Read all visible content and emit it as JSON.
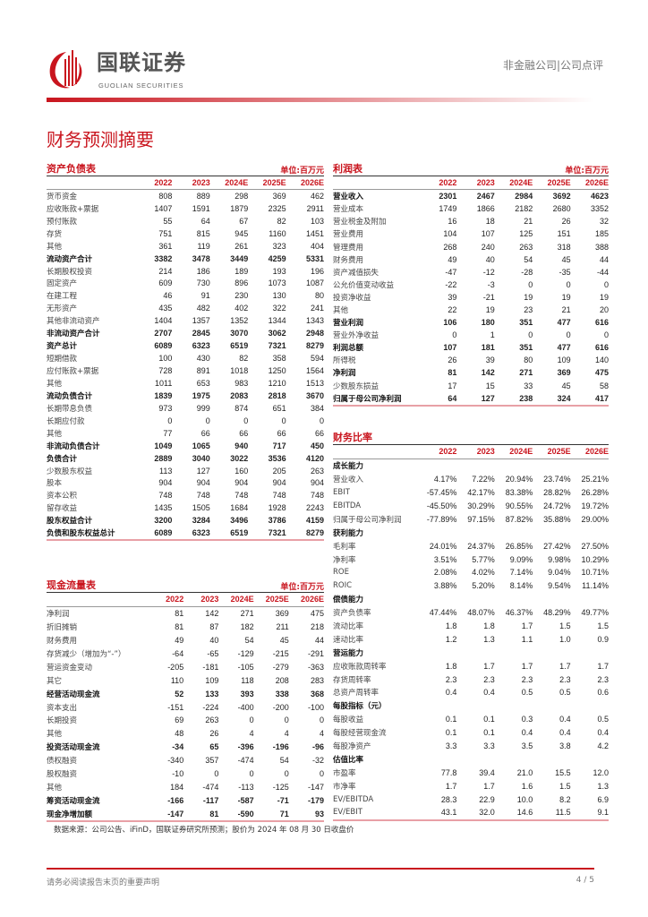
{
  "header": {
    "brand_cn": "国联证券",
    "brand_en": "GUOLIAN SECURITIES",
    "category": "非金融公司|公司点评",
    "brand_color": "#c9151e"
  },
  "page_title": "财务预测摘要",
  "years": [
    "2022",
    "2023",
    "2024E",
    "2025E",
    "2026E"
  ],
  "balance_sheet": {
    "title": "资产负债表",
    "unit": "单位:百万元",
    "rows": [
      {
        "label": "货币资金",
        "values": [
          "808",
          "889",
          "298",
          "369",
          "462"
        ]
      },
      {
        "label": "应收账款+票据",
        "values": [
          "1407",
          "1591",
          "1879",
          "2325",
          "2911"
        ]
      },
      {
        "label": "预付账款",
        "values": [
          "55",
          "64",
          "67",
          "82",
          "103"
        ]
      },
      {
        "label": "存货",
        "values": [
          "751",
          "815",
          "945",
          "1160",
          "1451"
        ]
      },
      {
        "label": "其他",
        "values": [
          "361",
          "119",
          "261",
          "323",
          "404"
        ]
      },
      {
        "label": "流动资产合计",
        "values": [
          "3382",
          "3478",
          "3449",
          "4259",
          "5331"
        ],
        "bold": true
      },
      {
        "label": "长期股权投资",
        "values": [
          "214",
          "186",
          "189",
          "193",
          "196"
        ]
      },
      {
        "label": "固定资产",
        "values": [
          "609",
          "730",
          "896",
          "1073",
          "1087"
        ]
      },
      {
        "label": "在建工程",
        "values": [
          "46",
          "91",
          "230",
          "130",
          "80"
        ]
      },
      {
        "label": "无形资产",
        "values": [
          "435",
          "482",
          "402",
          "322",
          "241"
        ]
      },
      {
        "label": "其他非流动资产",
        "values": [
          "1404",
          "1357",
          "1352",
          "1344",
          "1343"
        ]
      },
      {
        "label": "非流动资产合计",
        "values": [
          "2707",
          "2845",
          "3070",
          "3062",
          "2948"
        ],
        "bold": true
      },
      {
        "label": "资产总计",
        "values": [
          "6089",
          "6323",
          "6519",
          "7321",
          "8279"
        ],
        "bold": true
      },
      {
        "label": "短期借款",
        "values": [
          "100",
          "430",
          "82",
          "358",
          "594"
        ]
      },
      {
        "label": "应付账款+票据",
        "values": [
          "728",
          "891",
          "1018",
          "1250",
          "1564"
        ]
      },
      {
        "label": "其他",
        "values": [
          "1011",
          "653",
          "983",
          "1210",
          "1513"
        ]
      },
      {
        "label": "流动负债合计",
        "values": [
          "1839",
          "1975",
          "2083",
          "2818",
          "3670"
        ],
        "bold": true
      },
      {
        "label": "长期带息负债",
        "values": [
          "973",
          "999",
          "874",
          "651",
          "384"
        ]
      },
      {
        "label": "长期应付款",
        "values": [
          "0",
          "0",
          "0",
          "0",
          "0"
        ]
      },
      {
        "label": "其他",
        "values": [
          "77",
          "66",
          "66",
          "66",
          "66"
        ]
      },
      {
        "label": "非流动负债合计",
        "values": [
          "1049",
          "1065",
          "940",
          "717",
          "450"
        ],
        "bold": true
      },
      {
        "label": "负债合计",
        "values": [
          "2889",
          "3040",
          "3022",
          "3536",
          "4120"
        ],
        "bold": true
      },
      {
        "label": "少数股东权益",
        "values": [
          "113",
          "127",
          "160",
          "205",
          "263"
        ]
      },
      {
        "label": "股本",
        "values": [
          "904",
          "904",
          "904",
          "904",
          "904"
        ]
      },
      {
        "label": "资本公积",
        "values": [
          "748",
          "748",
          "748",
          "748",
          "748"
        ]
      },
      {
        "label": "留存收益",
        "values": [
          "1435",
          "1505",
          "1684",
          "1928",
          "2243"
        ]
      },
      {
        "label": "股东权益合计",
        "values": [
          "3200",
          "3284",
          "3496",
          "3786",
          "4159"
        ],
        "bold": true
      },
      {
        "label": "负债和股东权益总计",
        "values": [
          "6089",
          "6323",
          "6519",
          "7321",
          "8279"
        ],
        "bold": true
      }
    ]
  },
  "cash_flow": {
    "title": "现金流量表",
    "unit": "单位:百万元",
    "rows": [
      {
        "label": "净利润",
        "values": [
          "81",
          "142",
          "271",
          "369",
          "475"
        ]
      },
      {
        "label": "折旧摊销",
        "values": [
          "81",
          "87",
          "182",
          "211",
          "218"
        ]
      },
      {
        "label": "财务费用",
        "values": [
          "49",
          "40",
          "54",
          "45",
          "44"
        ]
      },
      {
        "label": "存货减少（增加为“-”）",
        "values": [
          "-64",
          "-65",
          "-129",
          "-215",
          "-291"
        ]
      },
      {
        "label": "营运资金变动",
        "values": [
          "-205",
          "-181",
          "-105",
          "-279",
          "-363"
        ]
      },
      {
        "label": "其它",
        "values": [
          "110",
          "109",
          "118",
          "208",
          "283"
        ]
      },
      {
        "label": "经营活动现金流",
        "values": [
          "52",
          "133",
          "393",
          "338",
          "368"
        ],
        "bold": true
      },
      {
        "label": "资本支出",
        "values": [
          "-151",
          "-224",
          "-400",
          "-200",
          "-100"
        ]
      },
      {
        "label": "长期投资",
        "values": [
          "69",
          "263",
          "0",
          "0",
          "0"
        ]
      },
      {
        "label": "其他",
        "values": [
          "48",
          "26",
          "4",
          "4",
          "4"
        ]
      },
      {
        "label": "投资活动现金流",
        "values": [
          "-34",
          "65",
          "-396",
          "-196",
          "-96"
        ],
        "bold": true
      },
      {
        "label": "债权融资",
        "values": [
          "-340",
          "357",
          "-474",
          "54",
          "-32"
        ]
      },
      {
        "label": "股权融资",
        "values": [
          "-10",
          "0",
          "0",
          "0",
          "0"
        ]
      },
      {
        "label": "其他",
        "values": [
          "184",
          "-474",
          "-113",
          "-125",
          "-147"
        ]
      },
      {
        "label": "筹资活动现金流",
        "values": [
          "-166",
          "-117",
          "-587",
          "-71",
          "-179"
        ],
        "bold": true
      },
      {
        "label": "现金净增加额",
        "values": [
          "-147",
          "81",
          "-590",
          "71",
          "93"
        ],
        "bold": true
      }
    ]
  },
  "income_statement": {
    "title": "利润表",
    "unit": "单位:百万元",
    "rows": [
      {
        "label": "营业收入",
        "values": [
          "2301",
          "2467",
          "2984",
          "3692",
          "4623"
        ],
        "bold": true
      },
      {
        "label": "营业成本",
        "values": [
          "1749",
          "1866",
          "2182",
          "2680",
          "3352"
        ]
      },
      {
        "label": "营业税金及附加",
        "values": [
          "16",
          "18",
          "21",
          "26",
          "32"
        ]
      },
      {
        "label": "营业费用",
        "values": [
          "104",
          "107",
          "125",
          "151",
          "185"
        ]
      },
      {
        "label": "管理费用",
        "values": [
          "268",
          "240",
          "263",
          "318",
          "388"
        ]
      },
      {
        "label": "财务费用",
        "values": [
          "49",
          "40",
          "54",
          "45",
          "44"
        ]
      },
      {
        "label": "资产减值损失",
        "values": [
          "-47",
          "-12",
          "-28",
          "-35",
          "-44"
        ]
      },
      {
        "label": "公允价值变动收益",
        "values": [
          "-22",
          "-3",
          "0",
          "0",
          "0"
        ]
      },
      {
        "label": "投资净收益",
        "values": [
          "39",
          "-21",
          "19",
          "19",
          "19"
        ]
      },
      {
        "label": "其他",
        "values": [
          "22",
          "19",
          "23",
          "21",
          "20"
        ]
      },
      {
        "label": "营业利润",
        "values": [
          "106",
          "180",
          "351",
          "477",
          "616"
        ],
        "bold": true
      },
      {
        "label": "营业外净收益",
        "values": [
          "0",
          "1",
          "0",
          "0",
          "0"
        ]
      },
      {
        "label": "利润总额",
        "values": [
          "107",
          "181",
          "351",
          "477",
          "616"
        ],
        "bold": true
      },
      {
        "label": "所得税",
        "values": [
          "26",
          "39",
          "80",
          "109",
          "140"
        ]
      },
      {
        "label": "净利润",
        "values": [
          "81",
          "142",
          "271",
          "369",
          "475"
        ],
        "bold": true
      },
      {
        "label": "少数股东损益",
        "values": [
          "17",
          "15",
          "33",
          "45",
          "58"
        ]
      },
      {
        "label": "归属于母公司净利润",
        "values": [
          "64",
          "127",
          "238",
          "324",
          "417"
        ],
        "bold": true
      }
    ]
  },
  "ratios": {
    "title": "财务比率",
    "unit": "",
    "rows": [
      {
        "label": "成长能力",
        "values": [
          "",
          "",
          "",
          "",
          ""
        ],
        "bold": true
      },
      {
        "label": "营业收入",
        "values": [
          "4.17%",
          "7.22%",
          "20.94%",
          "23.74%",
          "25.21%"
        ]
      },
      {
        "label": "EBIT",
        "values": [
          "-57.45%",
          "42.17%",
          "83.38%",
          "28.82%",
          "26.28%"
        ]
      },
      {
        "label": "EBITDA",
        "values": [
          "-45.50%",
          "30.29%",
          "90.55%",
          "24.72%",
          "19.72%"
        ]
      },
      {
        "label": "归属于母公司净利润",
        "values": [
          "-77.89%",
          "97.15%",
          "87.82%",
          "35.88%",
          "29.00%"
        ]
      },
      {
        "label": "获利能力",
        "values": [
          "",
          "",
          "",
          "",
          ""
        ],
        "bold": true
      },
      {
        "label": "毛利率",
        "values": [
          "24.01%",
          "24.37%",
          "26.85%",
          "27.42%",
          "27.50%"
        ]
      },
      {
        "label": "净利率",
        "values": [
          "3.51%",
          "5.77%",
          "9.09%",
          "9.98%",
          "10.29%"
        ]
      },
      {
        "label": "ROE",
        "values": [
          "2.08%",
          "4.02%",
          "7.14%",
          "9.04%",
          "10.71%"
        ]
      },
      {
        "label": "ROIC",
        "values": [
          "3.88%",
          "5.20%",
          "8.14%",
          "9.54%",
          "11.14%"
        ]
      },
      {
        "label": "偿债能力",
        "values": [
          "",
          "",
          "",
          "",
          ""
        ],
        "bold": true
      },
      {
        "label": "资产负债率",
        "values": [
          "47.44%",
          "48.07%",
          "46.37%",
          "48.29%",
          "49.77%"
        ]
      },
      {
        "label": "流动比率",
        "values": [
          "1.8",
          "1.8",
          "1.7",
          "1.5",
          "1.5"
        ]
      },
      {
        "label": "速动比率",
        "values": [
          "1.2",
          "1.3",
          "1.1",
          "1.0",
          "0.9"
        ]
      },
      {
        "label": "营运能力",
        "values": [
          "",
          "",
          "",
          "",
          ""
        ],
        "bold": true
      },
      {
        "label": "应收账款周转率",
        "values": [
          "1.8",
          "1.7",
          "1.7",
          "1.7",
          "1.7"
        ]
      },
      {
        "label": "存货周转率",
        "values": [
          "2.3",
          "2.3",
          "2.3",
          "2.3",
          "2.3"
        ]
      },
      {
        "label": "总资产周转率",
        "values": [
          "0.4",
          "0.4",
          "0.5",
          "0.5",
          "0.6"
        ]
      },
      {
        "label": "每股指标（元）",
        "values": [
          "",
          "",
          "",
          "",
          ""
        ],
        "bold": true
      },
      {
        "label": "每股收益",
        "values": [
          "0.1",
          "0.1",
          "0.3",
          "0.4",
          "0.5"
        ]
      },
      {
        "label": "每股经营现金流",
        "values": [
          "0.1",
          "0.1",
          "0.4",
          "0.4",
          "0.4"
        ]
      },
      {
        "label": "每股净资产",
        "values": [
          "3.3",
          "3.3",
          "3.5",
          "3.8",
          "4.2"
        ]
      },
      {
        "label": "估值比率",
        "values": [
          "",
          "",
          "",
          "",
          ""
        ],
        "bold": true
      },
      {
        "label": "市盈率",
        "values": [
          "77.8",
          "39.4",
          "21.0",
          "15.5",
          "12.0"
        ]
      },
      {
        "label": "市净率",
        "values": [
          "1.7",
          "1.7",
          "1.6",
          "1.5",
          "1.3"
        ]
      },
      {
        "label": "EV/EBITDA",
        "values": [
          "28.3",
          "22.9",
          "10.0",
          "8.2",
          "6.9"
        ]
      },
      {
        "label": "EV/EBIT",
        "values": [
          "43.1",
          "32.0",
          "14.6",
          "11.5",
          "9.1"
        ]
      }
    ]
  },
  "source": "数据来源：公司公告、iFinD，国联证券研究所预测；股价为 2024 年 08 月 30 日收盘价",
  "footer": {
    "disclaimer": "请务必阅读报告末页的重要声明",
    "page": "4 / 5"
  }
}
